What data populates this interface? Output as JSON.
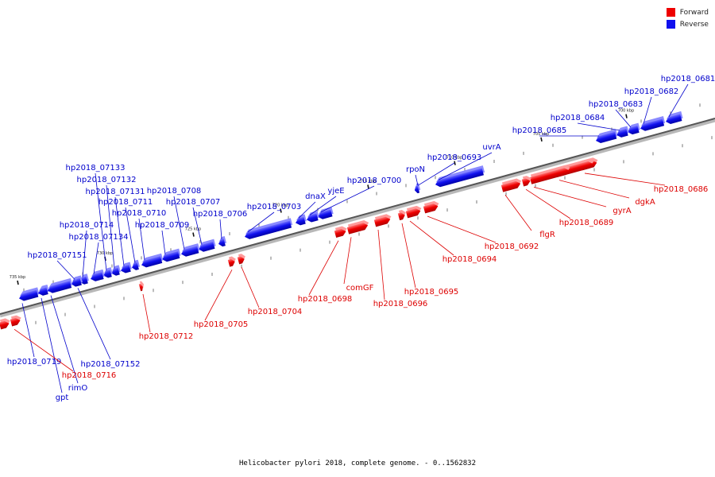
{
  "legend": {
    "forward_label": "Forward",
    "reverse_label": "Reverse",
    "forward_color": "#ee0000",
    "reverse_color": "#1010ee"
  },
  "caption": "Helicobacter pylori 2018, complete genome. - 0..1562832",
  "axis_unit": "kbp",
  "position_ticks": [
    {
      "label": "735 kbp",
      "kbp": 735
    },
    {
      "label": "730 kbp",
      "kbp": 730
    },
    {
      "label": "725 kbp",
      "kbp": 725
    },
    {
      "label": "720 kbp",
      "kbp": 720
    },
    {
      "label": "715 kbp",
      "kbp": 715
    },
    {
      "label": "710 kbp",
      "kbp": 710
    },
    {
      "label": "705 kbp",
      "kbp": 705
    },
    {
      "label": "700 kbp",
      "kbp": 700
    }
  ],
  "genes_reverse": [
    {
      "name": "hp2018_0681"
    },
    {
      "name": "hp2018_0682"
    },
    {
      "name": "hp2018_0683"
    },
    {
      "name": "hp2018_0684"
    },
    {
      "name": "hp2018_0685"
    },
    {
      "name": "uvrA"
    },
    {
      "name": "hp2018_0693"
    },
    {
      "name": "rpoN"
    },
    {
      "name": "hp2018_0700"
    },
    {
      "name": "yjeE"
    },
    {
      "name": "dnaX"
    },
    {
      "name": "hp2018_0703"
    },
    {
      "name": "hp2018_0706"
    },
    {
      "name": "hp2018_0707"
    },
    {
      "name": "hp2018_0708"
    },
    {
      "name": "hp2018_0709"
    },
    {
      "name": "hp2018_0710"
    },
    {
      "name": "hp2018_0711"
    },
    {
      "name": "hp2018_07131"
    },
    {
      "name": "hp2018_07132"
    },
    {
      "name": "hp2018_07133"
    },
    {
      "name": "hp2018_07134"
    },
    {
      "name": "hp2018_0714"
    },
    {
      "name": "hp2018_07151"
    },
    {
      "name": "hp2018_0719"
    },
    {
      "name": "gpt"
    },
    {
      "name": "rimO"
    },
    {
      "name": "hp2018_07152"
    }
  ],
  "genes_forward": [
    {
      "name": "hp2018_0686"
    },
    {
      "name": "dgkA"
    },
    {
      "name": "gyrA"
    },
    {
      "name": "hp2018_0689"
    },
    {
      "name": "flgR"
    },
    {
      "name": "hp2018_0692"
    },
    {
      "name": "hp2018_0694"
    },
    {
      "name": "hp2018_0695"
    },
    {
      "name": "hp2018_0696"
    },
    {
      "name": "comGF"
    },
    {
      "name": "hp2018_0698"
    },
    {
      "name": "hp2018_0704"
    },
    {
      "name": "hp2018_0705"
    },
    {
      "name": "hp2018_0712"
    },
    {
      "name": "hp2018_0716"
    }
  ]
}
